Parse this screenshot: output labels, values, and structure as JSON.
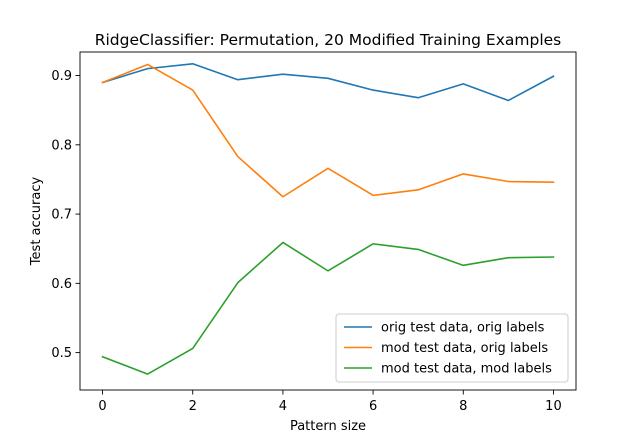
{
  "chart_data": {
    "type": "line",
    "title": "RidgeClassifier: Permutation, 20 Modified Training Examples",
    "xlabel": "Pattern size",
    "ylabel": "Test accuracy",
    "x": [
      0,
      1,
      2,
      3,
      4,
      5,
      6,
      7,
      8,
      9,
      10
    ],
    "xlim": [
      -0.5,
      10.5
    ],
    "ylim": [
      0.446,
      0.934
    ],
    "xticks": [
      0,
      2,
      4,
      6,
      8,
      10
    ],
    "yticks": [
      0.5,
      0.6,
      0.7,
      0.8,
      0.9
    ],
    "ytick_labels": [
      "0.5",
      "0.6",
      "0.7",
      "0.8",
      "0.9"
    ],
    "grid": false,
    "legend_position": "lower-right",
    "series": [
      {
        "name": "orig test data, orig labels",
        "color": "#1f77b4",
        "values": [
          0.89,
          0.91,
          0.917,
          0.894,
          0.902,
          0.896,
          0.879,
          0.868,
          0.888,
          0.864,
          0.899
        ]
      },
      {
        "name": "mod test data, orig labels",
        "color": "#ff7f0e",
        "values": [
          0.89,
          0.916,
          0.879,
          0.783,
          0.725,
          0.766,
          0.727,
          0.735,
          0.758,
          0.747,
          0.746
        ]
      },
      {
        "name": "mod test data, mod labels",
        "color": "#2ca02c",
        "values": [
          0.494,
          0.469,
          0.506,
          0.601,
          0.659,
          0.618,
          0.657,
          0.649,
          0.626,
          0.637,
          0.638
        ]
      }
    ]
  }
}
